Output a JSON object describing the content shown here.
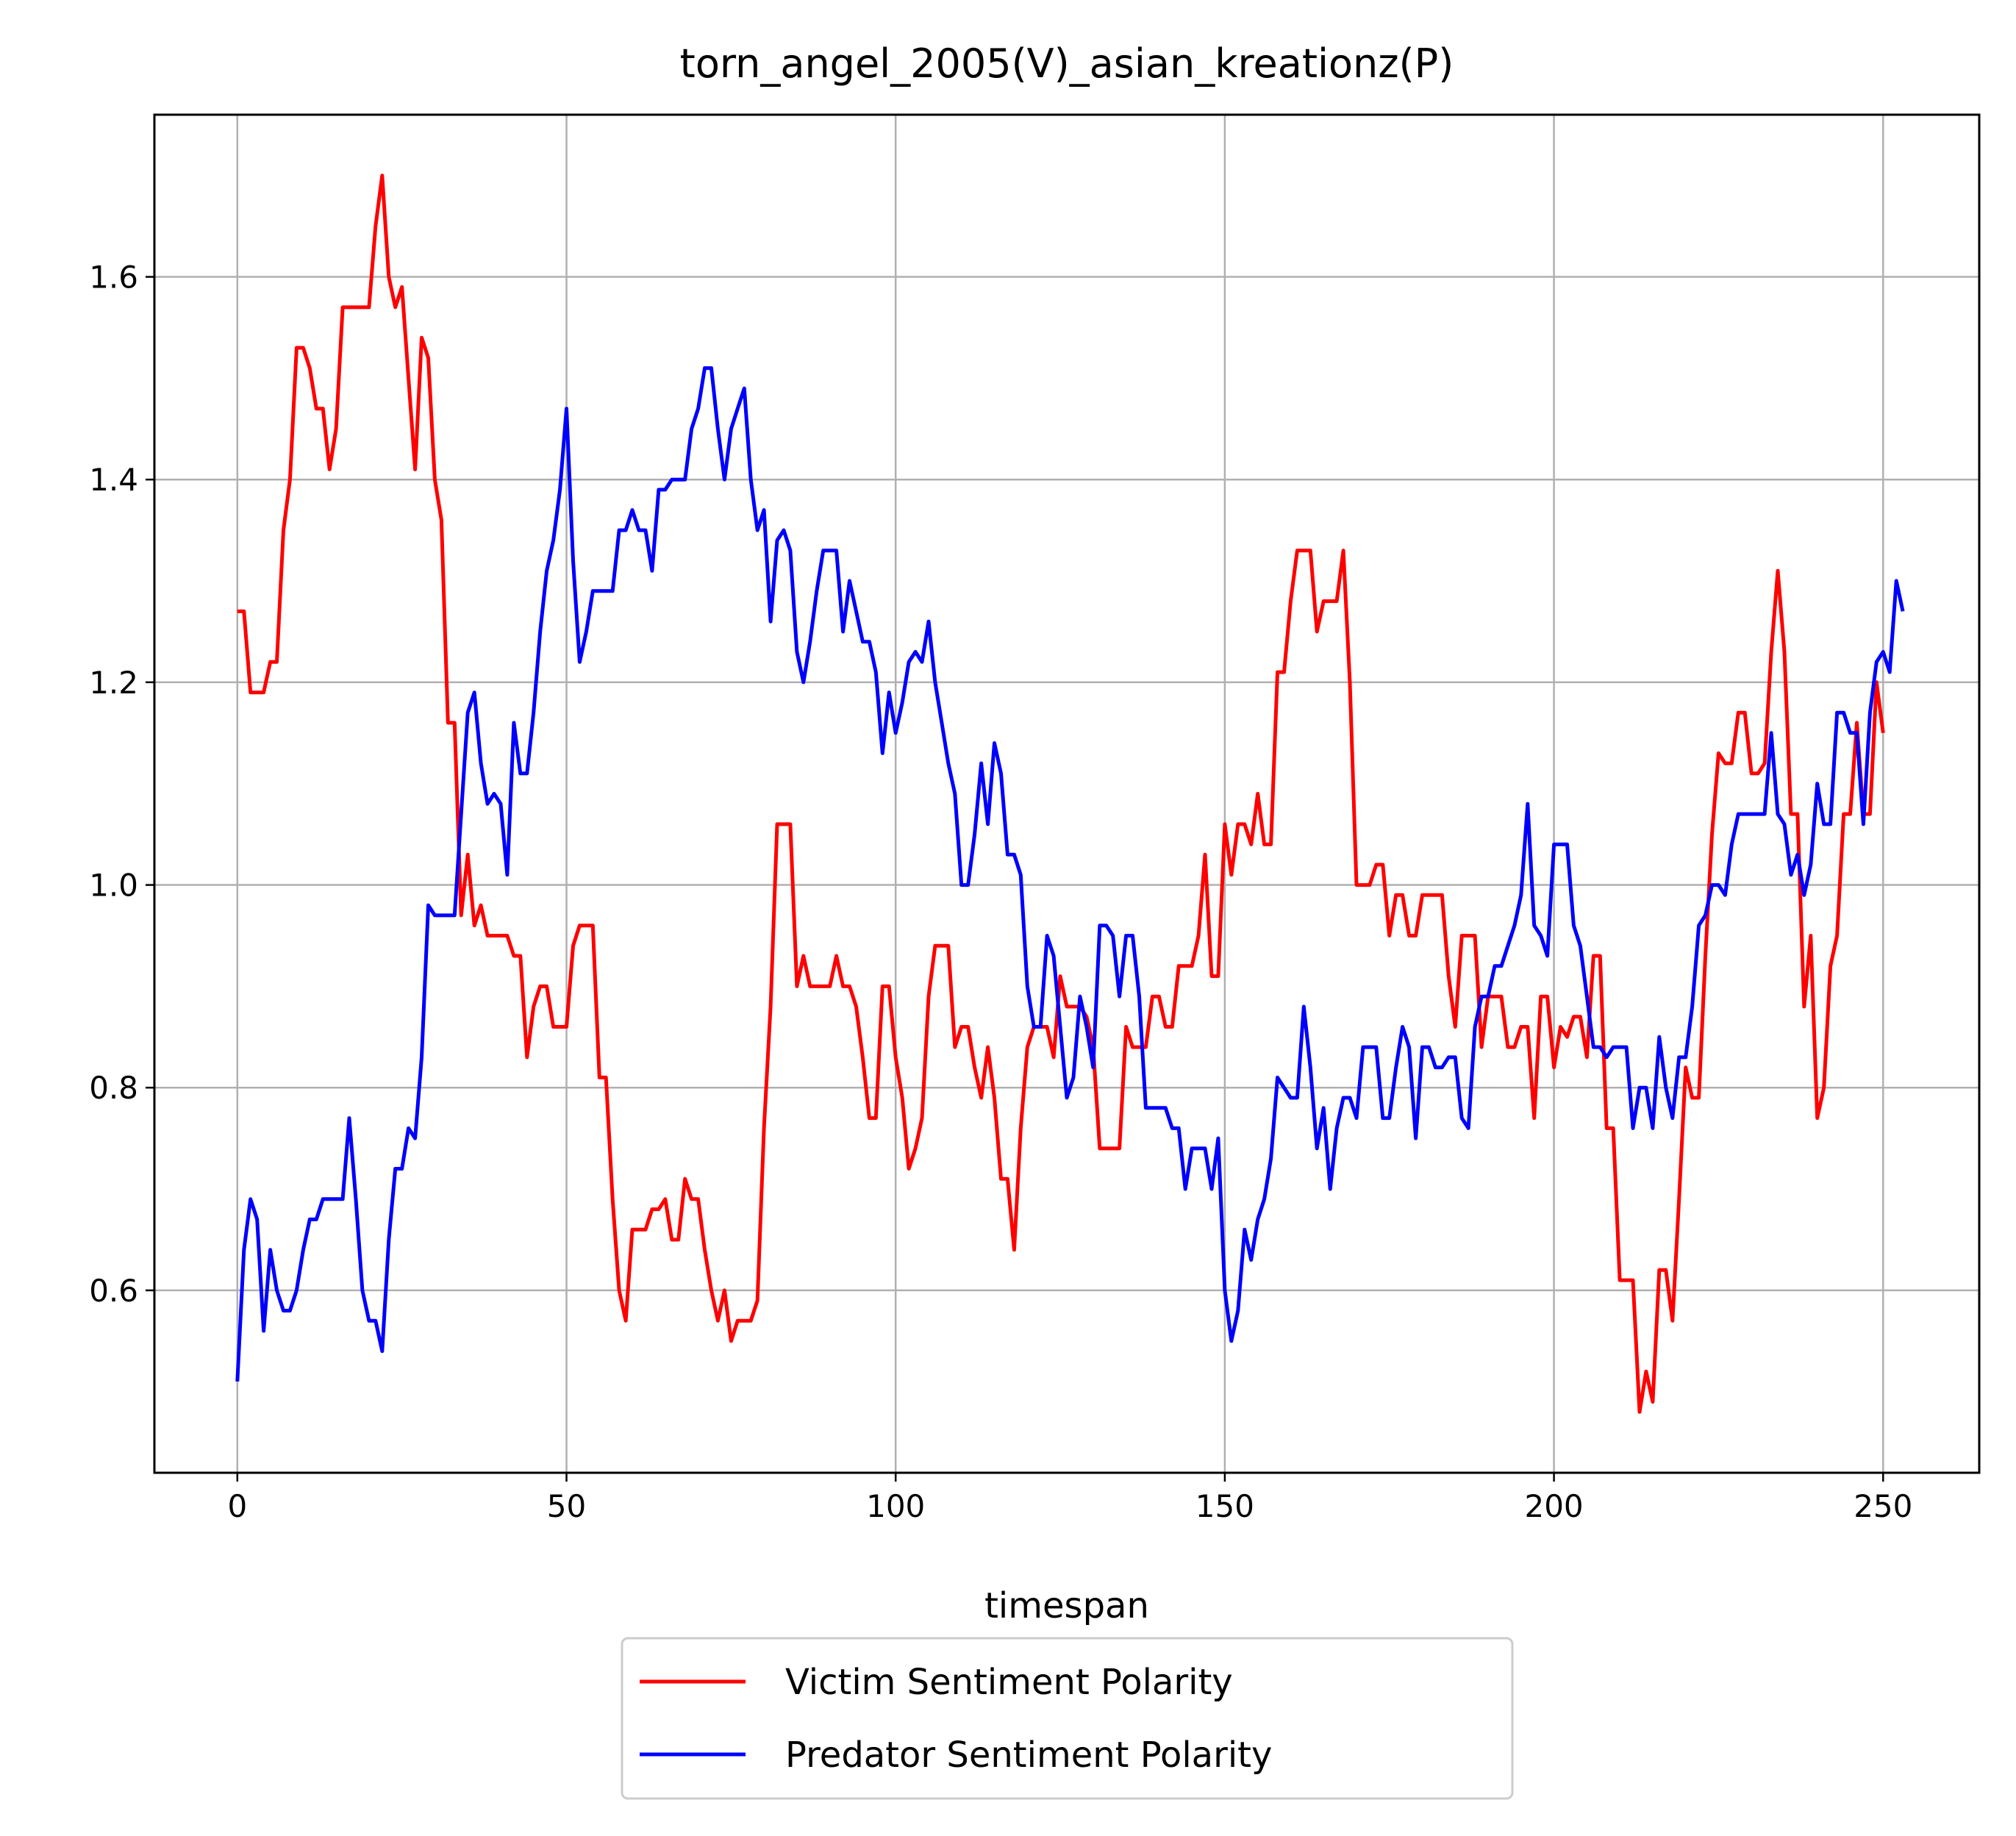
{
  "chart_data": {
    "type": "line",
    "title": "torn_angel_2005(V)_asian_kreationz(P)",
    "xlabel": "timespan",
    "ylabel": "",
    "xlim": [
      -12.6,
      264.6
    ],
    "ylim": [
      0.42,
      1.76
    ],
    "xticks": [
      0,
      50,
      100,
      150,
      200,
      250
    ],
    "yticks": [
      0.6,
      0.8,
      1.0,
      1.2,
      1.4,
      1.6
    ],
    "xtick_labels": [
      "0",
      "50",
      "100",
      "150",
      "200",
      "250"
    ],
    "ytick_labels": [
      "0.6",
      "0.8",
      "1.0",
      "1.2",
      "1.4",
      "1.6"
    ],
    "grid": true,
    "legend_position": "below the plot, centered",
    "series": [
      {
        "name": "Victim Sentiment Polarity",
        "color": "#ff0000",
        "values": [
          1.27,
          1.27,
          1.19,
          1.19,
          1.19,
          1.22,
          1.22,
          1.35,
          1.4,
          1.53,
          1.53,
          1.51,
          1.47,
          1.47,
          1.41,
          1.45,
          1.57,
          1.57,
          1.57,
          1.57,
          1.57,
          1.65,
          1.7,
          1.6,
          1.57,
          1.59,
          1.5,
          1.41,
          1.54,
          1.52,
          1.4,
          1.36,
          1.16,
          1.16,
          0.97,
          1.03,
          0.96,
          0.98,
          0.95,
          0.95,
          0.95,
          0.95,
          0.93,
          0.93,
          0.83,
          0.88,
          0.9,
          0.9,
          0.86,
          0.86,
          0.86,
          0.94,
          0.96,
          0.96,
          0.96,
          0.81,
          0.81,
          0.69,
          0.6,
          0.57,
          0.66,
          0.66,
          0.66,
          0.68,
          0.68,
          0.69,
          0.65,
          0.65,
          0.71,
          0.69,
          0.69,
          0.64,
          0.6,
          0.57,
          0.6,
          0.55,
          0.57,
          0.57,
          0.57,
          0.59,
          0.76,
          0.88,
          1.06,
          1.06,
          1.06,
          0.9,
          0.93,
          0.9,
          0.9,
          0.9,
          0.9,
          0.93,
          0.9,
          0.9,
          0.88,
          0.83,
          0.77,
          0.77,
          0.9,
          0.9,
          0.83,
          0.79,
          0.72,
          0.74,
          0.77,
          0.89,
          0.94,
          0.94,
          0.94,
          0.84,
          0.86,
          0.86,
          0.82,
          0.79,
          0.84,
          0.79,
          0.71,
          0.71,
          0.64,
          0.76,
          0.84,
          0.86,
          0.86,
          0.86,
          0.83,
          0.91,
          0.88,
          0.88,
          0.88,
          0.87,
          0.84,
          0.74,
          0.74,
          0.74,
          0.74,
          0.86,
          0.84,
          0.84,
          0.84,
          0.89,
          0.89,
          0.86,
          0.86,
          0.92,
          0.92,
          0.92,
          0.95,
          1.03,
          0.91,
          0.91,
          1.06,
          1.01,
          1.06,
          1.06,
          1.04,
          1.09,
          1.04,
          1.04,
          1.21,
          1.21,
          1.28,
          1.33,
          1.33,
          1.33,
          1.25,
          1.28,
          1.28,
          1.28,
          1.33,
          1.2,
          1.0,
          1.0,
          1.0,
          1.02,
          1.02,
          0.95,
          0.99,
          0.99,
          0.95,
          0.95,
          0.99,
          0.99,
          0.99,
          0.99,
          0.91,
          0.86,
          0.95,
          0.95,
          0.95,
          0.84,
          0.89,
          0.89,
          0.89,
          0.84,
          0.84,
          0.86,
          0.86,
          0.77,
          0.89,
          0.89,
          0.82,
          0.86,
          0.85,
          0.87,
          0.87,
          0.83,
          0.93,
          0.93,
          0.76,
          0.76,
          0.61,
          0.61,
          0.61,
          0.48,
          0.52,
          0.49,
          0.62,
          0.62,
          0.57,
          0.69,
          0.82,
          0.79,
          0.79,
          0.93,
          1.05,
          1.13,
          1.12,
          1.12,
          1.17,
          1.17,
          1.11,
          1.11,
          1.12,
          1.23,
          1.31,
          1.23,
          1.07,
          1.07,
          0.88,
          0.95,
          0.77,
          0.8,
          0.92,
          0.95,
          1.07,
          1.07,
          1.16,
          1.07,
          1.07,
          1.2,
          1.15
        ]
      },
      {
        "name": "Predator Sentiment Polarity",
        "color": "#0000ff",
        "values": [
          0.51,
          0.64,
          0.69,
          0.67,
          0.56,
          0.64,
          0.6,
          0.58,
          0.58,
          0.6,
          0.64,
          0.67,
          0.67,
          0.69,
          0.69,
          0.69,
          0.69,
          0.77,
          0.69,
          0.6,
          0.57,
          0.57,
          0.54,
          0.65,
          0.72,
          0.72,
          0.76,
          0.75,
          0.83,
          0.98,
          0.97,
          0.97,
          0.97,
          0.97,
          1.07,
          1.17,
          1.19,
          1.12,
          1.08,
          1.09,
          1.08,
          1.01,
          1.16,
          1.11,
          1.11,
          1.17,
          1.25,
          1.31,
          1.34,
          1.39,
          1.47,
          1.32,
          1.22,
          1.25,
          1.29,
          1.29,
          1.29,
          1.29,
          1.35,
          1.35,
          1.37,
          1.35,
          1.35,
          1.31,
          1.39,
          1.39,
          1.4,
          1.4,
          1.4,
          1.45,
          1.47,
          1.51,
          1.51,
          1.45,
          1.4,
          1.45,
          1.47,
          1.49,
          1.4,
          1.35,
          1.37,
          1.26,
          1.34,
          1.35,
          1.33,
          1.23,
          1.2,
          1.24,
          1.29,
          1.33,
          1.33,
          1.33,
          1.25,
          1.3,
          1.27,
          1.24,
          1.24,
          1.21,
          1.13,
          1.19,
          1.15,
          1.18,
          1.22,
          1.23,
          1.22,
          1.26,
          1.2,
          1.16,
          1.12,
          1.09,
          1.0,
          1.0,
          1.05,
          1.12,
          1.06,
          1.14,
          1.11,
          1.03,
          1.03,
          1.01,
          0.9,
          0.86,
          0.86,
          0.95,
          0.93,
          0.86,
          0.79,
          0.81,
          0.89,
          0.86,
          0.82,
          0.96,
          0.96,
          0.95,
          0.89,
          0.95,
          0.95,
          0.89,
          0.78,
          0.78,
          0.78,
          0.78,
          0.76,
          0.76,
          0.7,
          0.74,
          0.74,
          0.74,
          0.7,
          0.75,
          0.6,
          0.55,
          0.58,
          0.66,
          0.63,
          0.67,
          0.69,
          0.73,
          0.81,
          0.8,
          0.79,
          0.79,
          0.88,
          0.82,
          0.74,
          0.78,
          0.7,
          0.76,
          0.79,
          0.79,
          0.77,
          0.84,
          0.84,
          0.84,
          0.77,
          0.77,
          0.82,
          0.86,
          0.84,
          0.75,
          0.84,
          0.84,
          0.82,
          0.82,
          0.83,
          0.83,
          0.77,
          0.76,
          0.86,
          0.89,
          0.89,
          0.92,
          0.92,
          0.94,
          0.96,
          0.99,
          1.08,
          0.96,
          0.95,
          0.93,
          1.04,
          1.04,
          1.04,
          0.96,
          0.94,
          0.89,
          0.84,
          0.84,
          0.83,
          0.84,
          0.84,
          0.84,
          0.76,
          0.8,
          0.8,
          0.76,
          0.85,
          0.8,
          0.77,
          0.83,
          0.83,
          0.88,
          0.96,
          0.97,
          1.0,
          1.0,
          0.99,
          1.04,
          1.07,
          1.07,
          1.07,
          1.07,
          1.07,
          1.15,
          1.07,
          1.06,
          1.01,
          1.03,
          0.99,
          1.02,
          1.1,
          1.06,
          1.06,
          1.17,
          1.17,
          1.15,
          1.15,
          1.06,
          1.17,
          1.22,
          1.23,
          1.21,
          1.3,
          1.27
        ]
      }
    ]
  }
}
